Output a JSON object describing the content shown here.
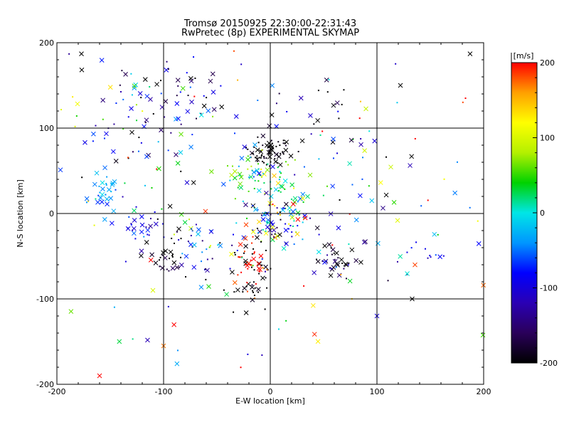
{
  "chart_data": {
    "type": "scatter",
    "title": "Tromsø 20150925 22:30:00-22:31:43",
    "subtitle": "RwPretec (8p) EXPERIMENTAL SKYMAP",
    "xlabel": "E-W location [km]",
    "ylabel": "N-S location [km]",
    "xlim": [
      -200,
      200
    ],
    "ylim": [
      -200,
      200
    ],
    "xticks": [
      -200,
      -100,
      0,
      100,
      200
    ],
    "yticks": [
      -200,
      -100,
      0,
      100,
      200
    ],
    "grid_lines": [
      -100,
      0,
      100
    ],
    "grid": true,
    "colorbar": {
      "label": "[m/s]",
      "min": -200,
      "max": 200,
      "ticks": [
        200,
        100,
        0,
        -100,
        -200
      ],
      "colormap": [
        "#000000",
        "#2a005a",
        "#2a00b4",
        "#0000ff",
        "#0096ff",
        "#00e6e6",
        "#00d200",
        "#b4f000",
        "#ffff00",
        "#ffa000",
        "#ff0000"
      ]
    },
    "legend": "colorbar at right",
    "marker_styles": [
      "dot",
      "x"
    ],
    "clusters": [
      {
        "x": 0,
        "y": 72,
        "sx": 10,
        "sy": 8,
        "n": 70,
        "v": -200,
        "vs": 10
      },
      {
        "x": -10,
        "y": 45,
        "sx": 22,
        "sy": 12,
        "n": 70,
        "v": 30,
        "vs": 50
      },
      {
        "x": 5,
        "y": -10,
        "sx": 18,
        "sy": 18,
        "n": 110,
        "v": -40,
        "vs": 100
      },
      {
        "x": -18,
        "y": -70,
        "sx": 10,
        "sy": 22,
        "n": 45,
        "v": -200,
        "vs": 10
      },
      {
        "x": -22,
        "y": -55,
        "sx": 10,
        "sy": 15,
        "n": 30,
        "v": 195,
        "vs": 10
      },
      {
        "x": 60,
        "y": -55,
        "sx": 12,
        "sy": 15,
        "n": 40,
        "v": -180,
        "vs": 40
      },
      {
        "x": -155,
        "y": 28,
        "sx": 8,
        "sy": 12,
        "n": 30,
        "v": -40,
        "vs": 20
      },
      {
        "x": -130,
        "y": 110,
        "sx": 35,
        "sy": 40,
        "n": 70,
        "v": -60,
        "vs": 90
      },
      {
        "x": -80,
        "y": 130,
        "sx": 25,
        "sy": 25,
        "n": 40,
        "v": -150,
        "vs": 70
      },
      {
        "x": -120,
        "y": -15,
        "sx": 12,
        "sy": 10,
        "n": 25,
        "v": -100,
        "vs": 30
      },
      {
        "x": -100,
        "y": -55,
        "sx": 10,
        "sy": 12,
        "n": 25,
        "v": -190,
        "vs": 20
      },
      {
        "x": -70,
        "y": -40,
        "sx": 25,
        "sy": 20,
        "n": 40,
        "v": -80,
        "vs": 100
      },
      {
        "x": 100,
        "y": 50,
        "sx": 30,
        "sy": 25,
        "n": 22,
        "v": -50,
        "vs": 150
      },
      {
        "x": 150,
        "y": -50,
        "sx": 10,
        "sy": 10,
        "n": 10,
        "v": -110,
        "vs": 20
      },
      {
        "x": 40,
        "y": 120,
        "sx": 25,
        "sy": 25,
        "n": 25,
        "v": -150,
        "vs": 100
      },
      {
        "x": 0,
        "y": 0,
        "sx": 120,
        "sy": 120,
        "n": 150,
        "v": 0,
        "vs": 150
      }
    ],
    "extra_points": [
      {
        "x": -160,
        "y": -190,
        "v": 200,
        "m": "x"
      },
      {
        "x": -100,
        "y": -155,
        "v": 170,
        "m": "x"
      },
      {
        "x": -177,
        "y": 187,
        "v": -200,
        "m": "x"
      },
      {
        "x": 183,
        "y": 135,
        "v": 200,
        "m": "dot"
      },
      {
        "x": 122,
        "y": 150,
        "v": -200,
        "m": "x"
      },
      {
        "x": 133,
        "y": -100,
        "v": -200,
        "m": "x"
      },
      {
        "x": 100,
        "y": -120,
        "v": -100,
        "m": "x"
      },
      {
        "x": -110,
        "y": -90,
        "v": 100,
        "m": "x"
      }
    ]
  }
}
